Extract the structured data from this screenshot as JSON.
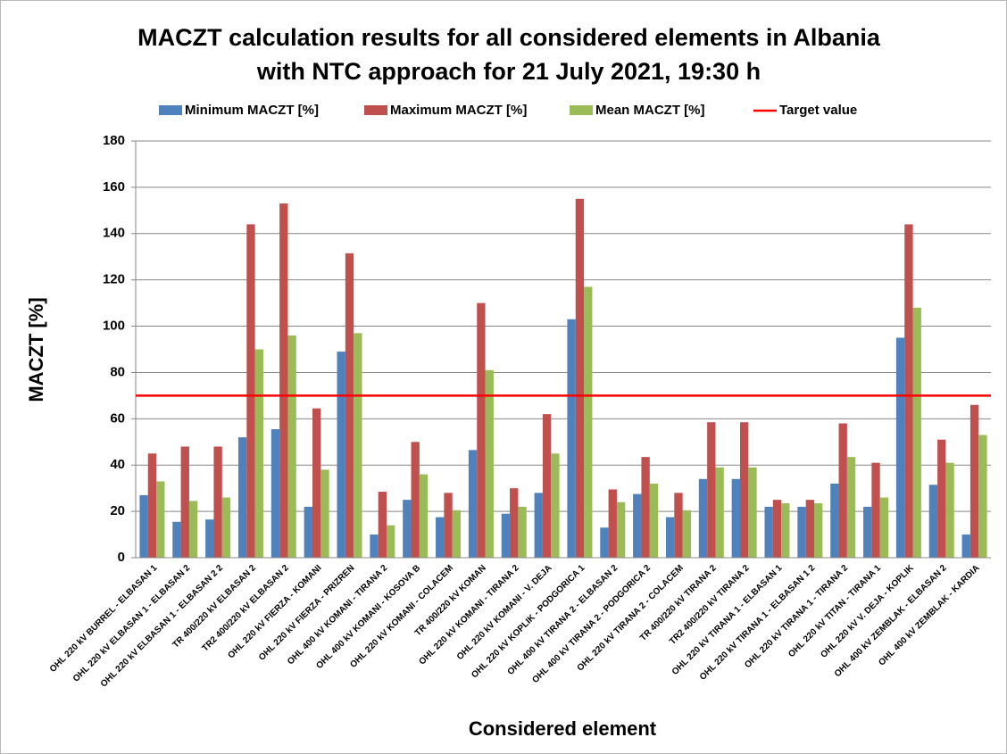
{
  "chart_data": {
    "type": "bar",
    "title": [
      "MACZT calculation results for all considered elements in Albania",
      "with NTC approach for 21 July 2021, 19:30 h"
    ],
    "xlabel": "Considered element",
    "ylabel": "MACZT [%]",
    "categories": [
      "OHL 220 kV BURREL - ELBASAN 1",
      "OHL 220 kV ELBASAN 1 - ELBASAN 2",
      "OHL 220 kV ELBASAN 1 - ELBASAN 2 2",
      "TR 400/220 kV ELBASAN 2",
      "TR2 400/220 kV ELBASAN 2",
      "OHL 220 kV FIERZA - KOMANI",
      "OHL 220 kV FIERZA - PRIZREN",
      "OHL 400 kV KOMANI - TIRANA 2",
      "OHL 400 kV KOMANI - KOSOVA B",
      "OHL 220 kV KOMANI - COLACEM",
      "TR 400/220 kV KOMAN",
      "OHL 220 kV KOMANI - TIRANA 2",
      "OHL 220 kV KOMANI - V. DEJA",
      "OHL 220 kV KOPLIK - PODGORICA 1",
      "OHL 400 kV TIRANA 2 - ELBASAN 2",
      "OHL 400 kV TIRANA 2 - PODGORICA 2",
      "OHL 220 kV TIRANA 2 - COLACEM",
      "TR 400/220 kV TIRANA 2",
      "TR2 400/220 kV TIRANA 2",
      "OHL 220 kV TIRANA 1 - ELBASAN 1",
      "OHL 220 kV TIRANA 1 - ELBASAN 1 2",
      "OHL 220 kV TIRANA 1 - TIRANA 2",
      "OHL 220 kV TITAN - TIRANA 1",
      "OHL 220 kV V. DEJA - KOPLIK",
      "OHL 400 kV ZEMBLAK - ELBASAN 2",
      "OHL 400 kV ZEMBLAK - KARDIA"
    ],
    "series": [
      {
        "name": "Minimum MACZT [%]",
        "color": "#4f81bd",
        "values": [
          27,
          15.5,
          16.5,
          52,
          55.5,
          22,
          89,
          10,
          25,
          17.5,
          46.5,
          19,
          28,
          103,
          13,
          27.5,
          17.5,
          34,
          34,
          22,
          22,
          32,
          22,
          95,
          31.5,
          10
        ]
      },
      {
        "name": "Maximum MACZT [%]",
        "color": "#c0504d",
        "values": [
          45,
          48,
          48,
          144,
          153,
          64.5,
          131.5,
          28.5,
          50,
          28,
          110,
          30,
          62,
          155,
          29.5,
          43.5,
          28,
          58.5,
          58.5,
          25,
          25,
          58,
          41,
          144,
          51,
          66
        ]
      },
      {
        "name": "Mean MACZT [%]",
        "color": "#9bbb59",
        "values": [
          33,
          24.5,
          26,
          90,
          96,
          38,
          97,
          14,
          36,
          20.5,
          81,
          22,
          45,
          117,
          24,
          32,
          20.5,
          39,
          39,
          23.5,
          23.5,
          43.5,
          26,
          108,
          41,
          53
        ]
      }
    ],
    "target": {
      "name": "Target value",
      "value": 70,
      "color": "#ff0000"
    },
    "ylim": [
      0,
      180
    ],
    "yticks": [
      0,
      20,
      40,
      60,
      80,
      100,
      120,
      140,
      160,
      180
    ],
    "grid": true
  }
}
